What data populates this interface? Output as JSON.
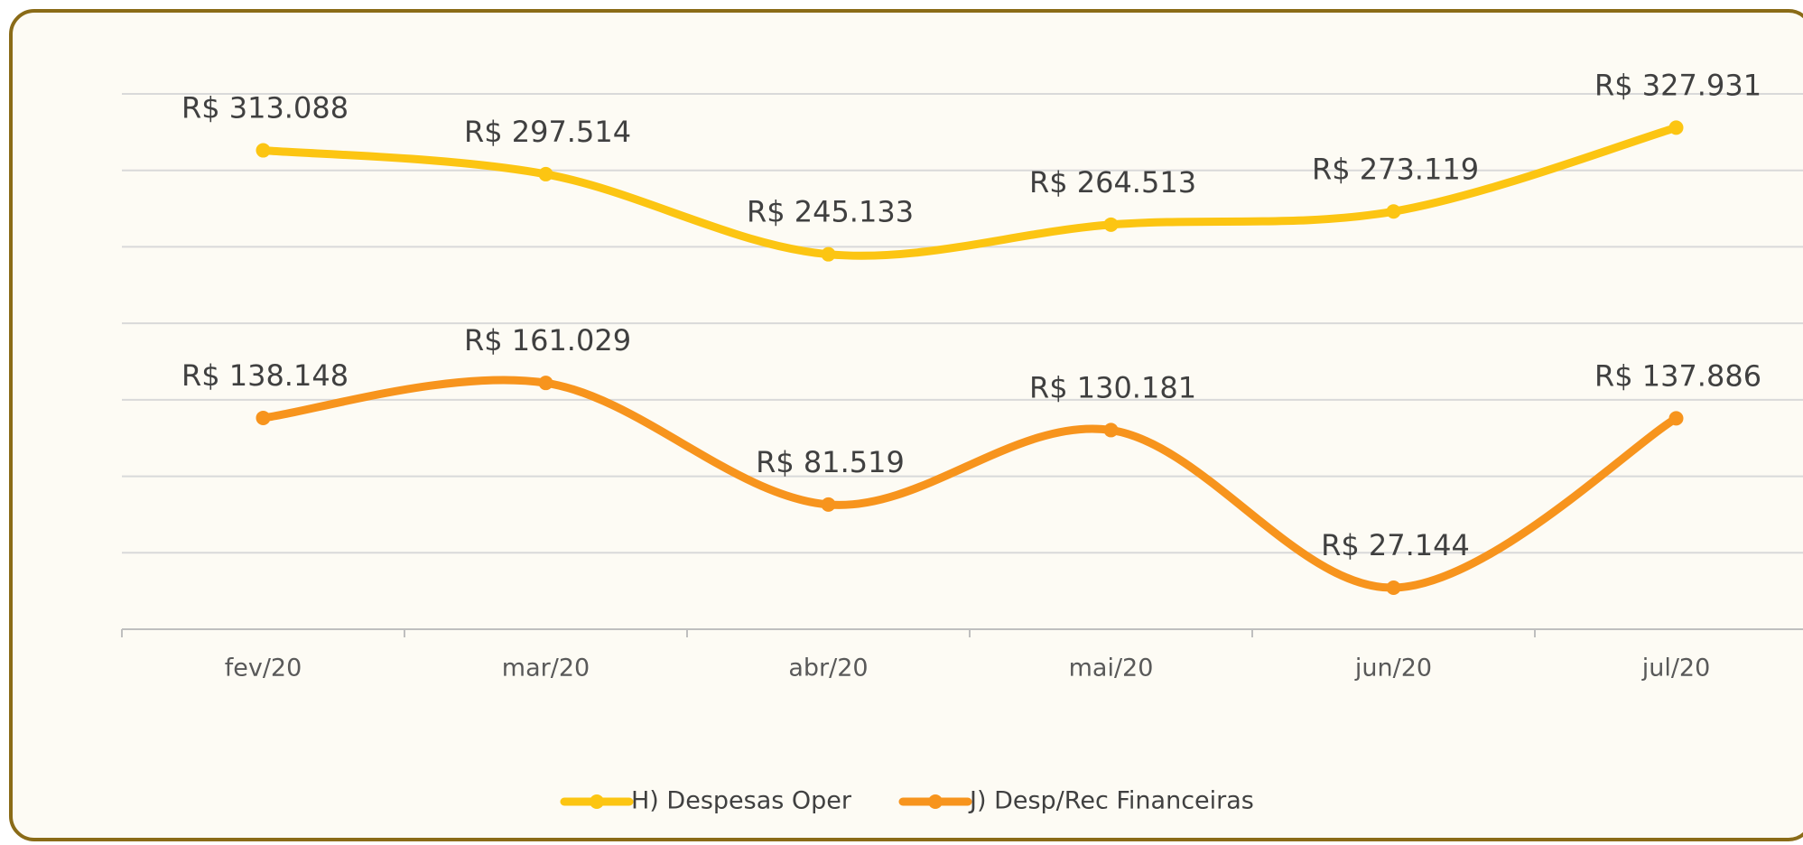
{
  "chart_data": {
    "type": "line",
    "categories": [
      "fev/20",
      "mar/20",
      "abr/20",
      "mai/20",
      "jun/20",
      "jul/20"
    ],
    "series": [
      {
        "name": "H) Despesas Oper",
        "color": "#fcc512",
        "values": [
          313088,
          297514,
          245133,
          264513,
          273119,
          327931
        ],
        "value_labels": [
          "R$ 313.088",
          "R$ 297.514",
          "R$ 245.133",
          "R$ 264.513",
          "R$ 273.119",
          "R$ 327.931"
        ]
      },
      {
        "name": "J) Desp/Rec Financeiras",
        "color": "#f7941d",
        "values": [
          138148,
          161029,
          81519,
          130181,
          27144,
          137886
        ],
        "value_labels": [
          "R$ 138.148",
          "R$ 161.029",
          "R$ 81.519",
          "R$ 130.181",
          "R$ 27.144",
          "R$ 137.886"
        ]
      }
    ],
    "ylim": [
      0,
      350000
    ],
    "yticks": [
      0,
      50000,
      100000,
      150000,
      200000,
      250000,
      300000,
      350000
    ],
    "grid": true,
    "smooth": true,
    "legend": "bottom"
  }
}
